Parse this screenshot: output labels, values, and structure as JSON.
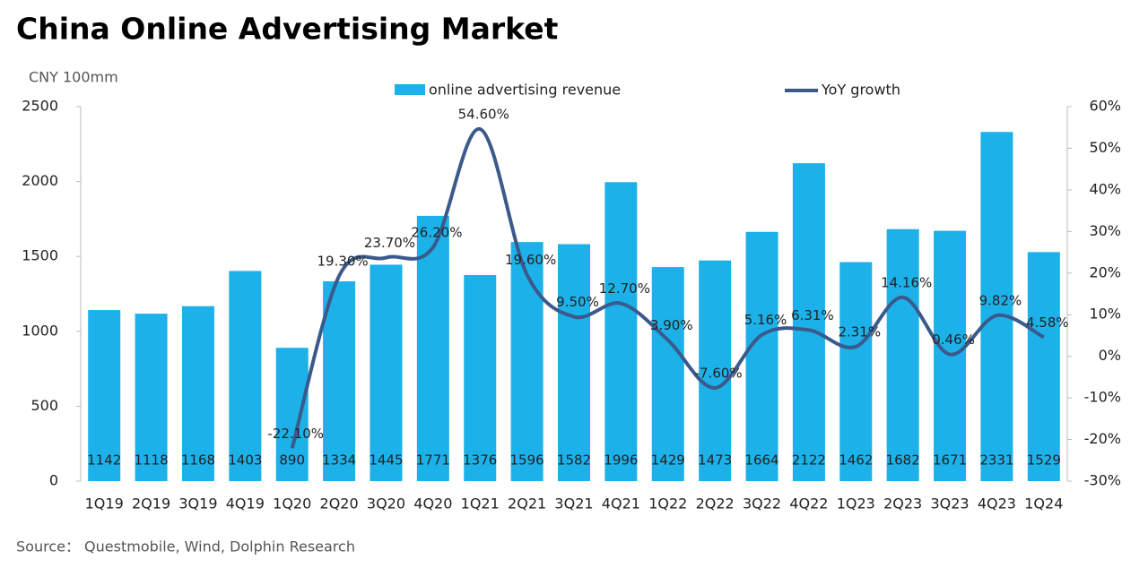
{
  "chart_data": {
    "type": "bar_line",
    "title": "China Online Advertising Market",
    "y_axis_label": "CNY 100mm",
    "source": "Source：  Questmobile, Wind, Dolphin Research",
    "categories": [
      "1Q19",
      "2Q19",
      "3Q19",
      "4Q19",
      "1Q20",
      "2Q20",
      "3Q20",
      "4Q20",
      "1Q21",
      "2Q21",
      "3Q21",
      "4Q21",
      "1Q22",
      "2Q22",
      "3Q22",
      "4Q22",
      "1Q23",
      "2Q23",
      "3Q23",
      "4Q23",
      "1Q24"
    ],
    "series": [
      {
        "name": "online advertising revenue",
        "type": "bar",
        "color": "#1db1ea",
        "values": [
          1142,
          1118,
          1168,
          1403,
          890,
          1334,
          1445,
          1771,
          1376,
          1596,
          1582,
          1996,
          1429,
          1473,
          1664,
          2122,
          1462,
          1682,
          1671,
          2331,
          1529
        ]
      },
      {
        "name": "YoY growth",
        "type": "line",
        "axis": "y2",
        "color": "#3b5a8c",
        "values": [
          null,
          null,
          null,
          null,
          -22.1,
          19.3,
          23.7,
          26.2,
          54.6,
          19.6,
          9.5,
          12.7,
          3.9,
          -7.6,
          5.16,
          6.31,
          2.31,
          14.16,
          0.46,
          9.82,
          4.58
        ],
        "value_labels": [
          null,
          null,
          null,
          null,
          "-22.10%",
          "19.30%",
          "23.70%",
          "26.20%",
          "54.60%",
          "19.60%",
          "9.50%",
          "12.70%",
          "3.90%",
          "-7.60%",
          "5.16%",
          "6.31%",
          "2.31%",
          "14.16%",
          "0.46%",
          "9.82%",
          "4.58%"
        ]
      }
    ],
    "ylim": [
      0,
      2500
    ],
    "yticks": [
      0,
      500,
      1000,
      1500,
      2000,
      2500
    ],
    "y2lim": [
      -30,
      60
    ],
    "y2ticks": [
      {
        "value": -30,
        "label": "-30%"
      },
      {
        "value": -20,
        "label": "-20%"
      },
      {
        "value": -10,
        "label": "-10%"
      },
      {
        "value": 0,
        "label": "0%"
      },
      {
        "value": 10,
        "label": "10%"
      },
      {
        "value": 20,
        "label": "20%"
      },
      {
        "value": 30,
        "label": "30%"
      },
      {
        "value": 40,
        "label": "40%"
      },
      {
        "value": 50,
        "label": "50%"
      },
      {
        "value": 60,
        "label": "60%"
      }
    ],
    "legend": "top"
  }
}
